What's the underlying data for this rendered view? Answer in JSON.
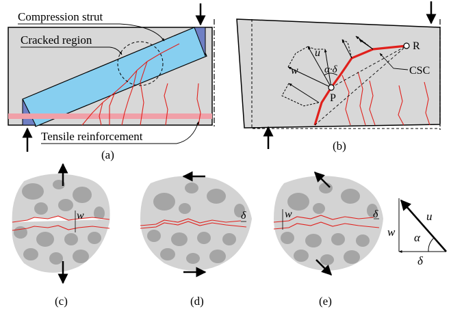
{
  "panel_a": {
    "label_compression_strut": "Compression strut",
    "label_cracked_region": "Cracked region",
    "label_tensile_reinforcement": "Tensile reinforcement",
    "caption": "(a)"
  },
  "panel_b": {
    "label_u": "u",
    "label_w": "w",
    "label_alpha_delta": "α·δ",
    "label_P": "P",
    "label_R": "R",
    "label_CSC": "CSC",
    "caption": "(b)"
  },
  "panel_c": {
    "label_w": "w",
    "caption": "(c)"
  },
  "panel_d": {
    "label_delta": "δ",
    "caption": "(d)"
  },
  "panel_e": {
    "label_w": "w",
    "label_delta": "δ",
    "caption": "(e)"
  },
  "triangle": {
    "label_u": "u",
    "label_w": "w",
    "label_alpha": "α",
    "label_delta": "δ"
  },
  "colors": {
    "concrete": "#d8d8d8",
    "strut": "#87cff0",
    "plate": "#6f7fc4",
    "rebar": "#f0a0a8",
    "crack": "#e0201c",
    "aggregate": "#a5a5a5",
    "aggregate_matrix": "#d3d3d3"
  }
}
